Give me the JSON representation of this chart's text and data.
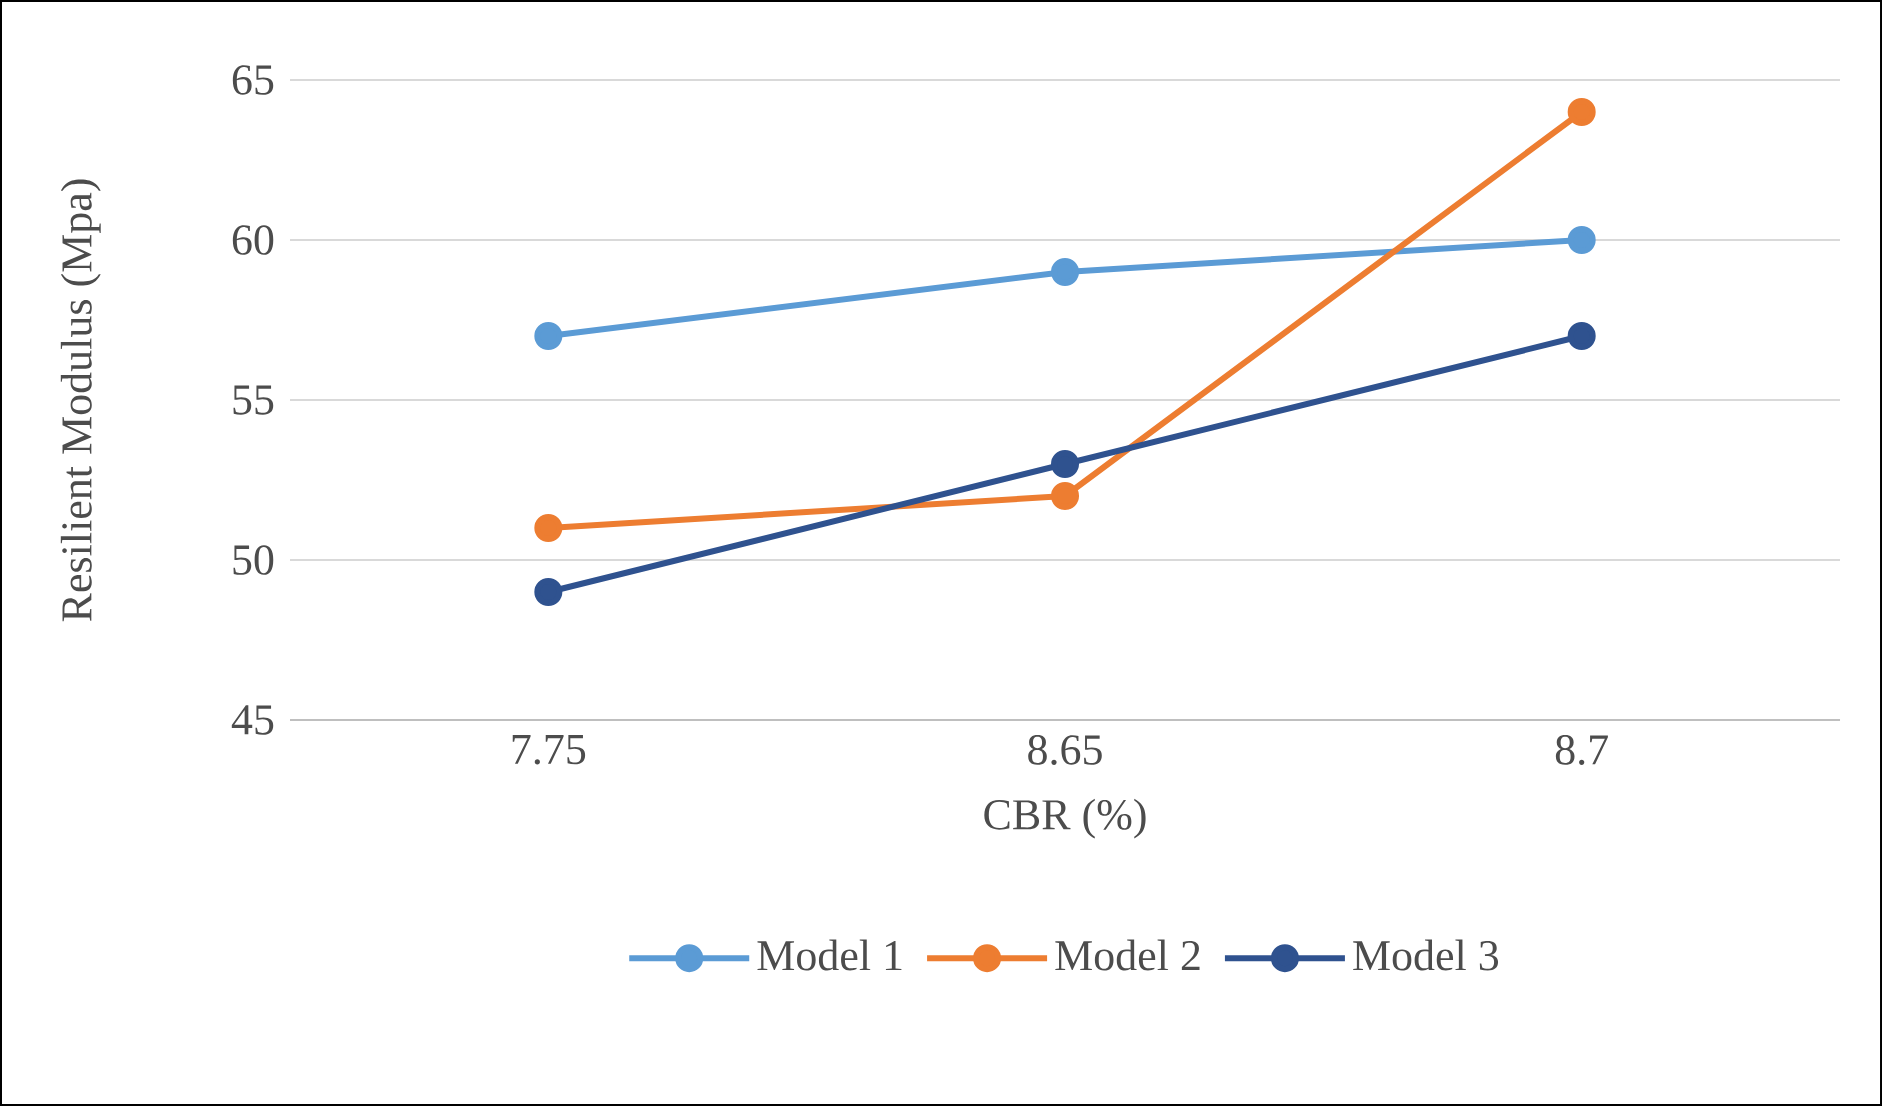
{
  "chart_data": {
    "type": "line",
    "xlabel": "CBR (%)",
    "ylabel": "Resilient Modulus (Mpa)",
    "categories": [
      "7.75",
      "8.65",
      "8.7"
    ],
    "series": [
      {
        "name": "Model 1",
        "color": "#5b9bd5",
        "values": [
          57,
          59,
          60
        ]
      },
      {
        "name": "Model 2",
        "color": "#ed7d31",
        "values": [
          51,
          52,
          64
        ]
      },
      {
        "name": "Model 3",
        "color": "#2f528f",
        "values": [
          49,
          53,
          57
        ]
      }
    ],
    "ylim": [
      45,
      65
    ],
    "yticks": [
      45,
      50,
      55,
      60,
      65
    ],
    "grid": "y",
    "legend": "bottom",
    "marker": "circle",
    "line_style": "solid"
  }
}
